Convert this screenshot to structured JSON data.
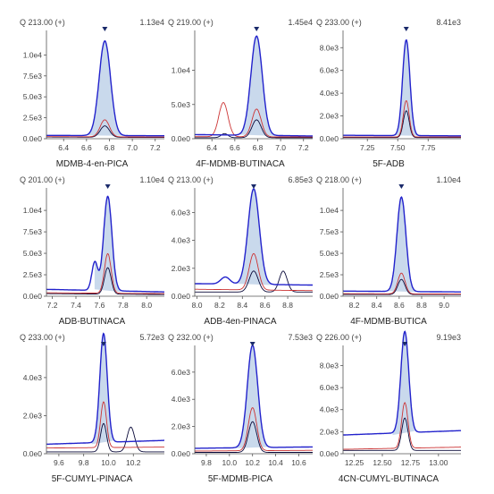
{
  "chart_data": [
    {
      "type": "line",
      "header_left": "Q 213.00 (+)",
      "header_right": "1.13e4",
      "title": "MDMB-4-en-PICA",
      "xlim": [
        6.25,
        7.28
      ],
      "ylim": [
        0,
        12500
      ],
      "xticks": [
        6.4,
        6.6,
        6.8,
        7.0,
        7.2
      ],
      "xtick_labels": [
        "6.4",
        "6.6",
        "6.8",
        "7.0",
        "7.2"
      ],
      "yticks": [
        0,
        2500,
        5000,
        7500,
        10000
      ],
      "ytick_labels": [
        "0.0e0",
        "2.5e3",
        "5.0e3",
        "7.5e3",
        "1.0e4"
      ],
      "apex_x": 6.76,
      "peak_width": 0.05,
      "peak_height": 11300,
      "ratios": [
        0.18,
        0.12
      ],
      "side_peaks": [],
      "blue_baseline": [
        400,
        350
      ],
      "red_baseline": [
        250,
        200
      ],
      "black_baseline": [
        200,
        150
      ]
    },
    {
      "type": "line",
      "header_left": "Q 219.00 (+)",
      "header_right": "1.45e4",
      "title": "4F-MDMB-BUTINACA",
      "xlim": [
        6.25,
        7.28
      ],
      "ylim": [
        0,
        15300
      ],
      "xticks": [
        6.4,
        6.6,
        6.8,
        7.0,
        7.2
      ],
      "xtick_labels": [
        "6.4",
        "6.6",
        "6.8",
        "7.0",
        "7.2"
      ],
      "yticks": [
        0,
        5000,
        10000
      ],
      "ytick_labels": [
        "0.0e0",
        "5.0e3",
        "1.0e4"
      ],
      "apex_x": 6.79,
      "peak_width": 0.05,
      "peak_height": 14500,
      "ratios": [
        0.28,
        0.18
      ],
      "side_peaks": [
        {
          "series": "red",
          "x": 6.5,
          "h": 5000,
          "w": 0.04
        },
        {
          "series": "black",
          "x": 6.51,
          "h": 600,
          "w": 0.03
        }
      ],
      "blue_baseline": [
        600,
        400
      ],
      "red_baseline": [
        300,
        250
      ],
      "black_baseline": [
        150,
        150
      ]
    },
    {
      "type": "line",
      "header_left": "Q 233.00 (+)",
      "header_right": "8.41e3",
      "title": "5F-ADB",
      "xlim": [
        7.05,
        8.02
      ],
      "ylim": [
        0,
        9200
      ],
      "xticks": [
        7.25,
        7.5,
        7.75
      ],
      "xtick_labels": [
        "7.25",
        "7.50",
        "7.75"
      ],
      "yticks": [
        0,
        2000,
        4000,
        6000,
        8000
      ],
      "ytick_labels": [
        "0.0e0",
        "2.0e3",
        "4.0e3",
        "6.0e3",
        "8.0e3"
      ],
      "apex_x": 7.57,
      "peak_width": 0.03,
      "peak_height": 8410,
      "ratios": [
        0.38,
        0.28
      ],
      "side_peaks": [],
      "blue_baseline": [
        300,
        250
      ],
      "red_baseline": [
        150,
        150
      ],
      "black_baseline": [
        100,
        100
      ]
    },
    {
      "type": "line",
      "header_left": "Q 201.00 (+)",
      "header_right": "1.10e4",
      "title": "ADB-BUTINACA",
      "xlim": [
        7.15,
        8.15
      ],
      "ylim": [
        0,
        12200
      ],
      "xticks": [
        7.2,
        7.4,
        7.6,
        7.8,
        8.0
      ],
      "xtick_labels": [
        "7.2",
        "7.4",
        "7.6",
        "7.8",
        "8.0"
      ],
      "yticks": [
        0,
        2500,
        5000,
        7500,
        10000
      ],
      "ytick_labels": [
        "0.0e0",
        "2.5e3",
        "5.0e3",
        "7.5e3",
        "1.0e4"
      ],
      "apex_x": 7.67,
      "peak_width": 0.035,
      "peak_height": 11000,
      "ratios": [
        0.42,
        0.28
      ],
      "side_peaks": [
        {
          "series": "blue",
          "x": 7.56,
          "h": 3300,
          "w": 0.025
        }
      ],
      "blue_baseline": [
        800,
        500
      ],
      "red_baseline": [
        400,
        300
      ],
      "black_baseline": [
        300,
        200
      ]
    },
    {
      "type": "line",
      "header_left": "Q 213.00 (+)",
      "header_right": "6.85e3",
      "title": "ADB-4en-PINACA",
      "xlim": [
        7.98,
        9.02
      ],
      "ylim": [
        0,
        7500
      ],
      "xticks": [
        8.0,
        8.2,
        8.4,
        8.6,
        8.8
      ],
      "xtick_labels": [
        "8.0",
        "8.2",
        "8.4",
        "8.6",
        "8.8"
      ],
      "yticks": [
        0,
        2000,
        4000,
        6000
      ],
      "ytick_labels": [
        "0.0e0",
        "2.0e3",
        "4.0e3",
        "6.0e3"
      ],
      "apex_x": 8.5,
      "peak_width": 0.05,
      "peak_height": 6850,
      "ratios": [
        0.38,
        0.22
      ],
      "side_peaks": [
        {
          "series": "black",
          "x": 8.76,
          "h": 1500,
          "w": 0.035
        },
        {
          "series": "blue",
          "x": 8.25,
          "h": 500,
          "w": 0.04
        }
      ],
      "blue_baseline": [
        900,
        800
      ],
      "red_baseline": [
        500,
        400
      ],
      "black_baseline": [
        300,
        300
      ]
    },
    {
      "type": "line",
      "header_left": "Q 218.00 (+)",
      "header_right": "1.10e4",
      "title": "4F-MDMB-BUTICA",
      "xlim": [
        8.1,
        9.15
      ],
      "ylim": [
        0,
        12200
      ],
      "xticks": [
        8.2,
        8.4,
        8.6,
        8.8,
        9.0
      ],
      "xtick_labels": [
        "8.2",
        "8.4",
        "8.6",
        "8.8",
        "9.0"
      ],
      "yticks": [
        0,
        2500,
        5000,
        7500,
        10000
      ],
      "ytick_labels": [
        "0.0e0",
        "2.5e3",
        "5.0e3",
        "7.5e3",
        "1.0e4"
      ],
      "apex_x": 8.62,
      "peak_width": 0.04,
      "peak_height": 11000,
      "ratios": [
        0.22,
        0.16
      ],
      "side_peaks": [],
      "blue_baseline": [
        600,
        500
      ],
      "red_baseline": [
        300,
        250
      ],
      "black_baseline": [
        200,
        200
      ]
    },
    {
      "type": "line",
      "header_left": "Q 233.00 (+)",
      "header_right": "5.72e3",
      "title": "5F-CUMYL-PINACA",
      "xlim": [
        9.5,
        10.45
      ],
      "ylim": [
        0,
        5500
      ],
      "xticks": [
        9.6,
        9.8,
        10.0,
        10.2
      ],
      "xtick_labels": [
        "9.6",
        "9.8",
        "10.0",
        "10.2"
      ],
      "yticks": [
        0,
        2000,
        4000
      ],
      "ytick_labels": [
        "0.0e0",
        "2.0e3",
        "4.0e3"
      ],
      "apex_x": 9.96,
      "peak_width": 0.03,
      "peak_height": 5720,
      "ratios": [
        0.42,
        0.26
      ],
      "side_peaks": [
        {
          "series": "black",
          "x": 10.18,
          "h": 1300,
          "w": 0.03
        }
      ],
      "blue_baseline": [
        500,
        700
      ],
      "red_baseline": [
        300,
        350
      ],
      "black_baseline": [
        100,
        100
      ]
    },
    {
      "type": "line",
      "header_left": "Q 232.00 (+)",
      "header_right": "7.53e3",
      "title": "5F-MDMB-PICA",
      "xlim": [
        9.7,
        10.72
      ],
      "ylim": [
        0,
        7700
      ],
      "xticks": [
        9.8,
        10.0,
        10.2,
        10.4,
        10.6
      ],
      "xtick_labels": [
        "9.8",
        "10.0",
        "10.2",
        "10.4",
        "10.6"
      ],
      "yticks": [
        0,
        2000,
        4000,
        6000
      ],
      "ytick_labels": [
        "0.0e0",
        "2.0e3",
        "4.0e3",
        "6.0e3"
      ],
      "apex_x": 10.2,
      "peak_width": 0.045,
      "peak_height": 7530,
      "ratios": [
        0.42,
        0.3
      ],
      "side_peaks": [],
      "blue_baseline": [
        400,
        500
      ],
      "red_baseline": [
        200,
        250
      ],
      "black_baseline": [
        100,
        100
      ]
    },
    {
      "type": "line",
      "header_left": "Q 226.00 (+)",
      "header_right": "9.19e3",
      "title": "4CN-CUMYL-BUTINACA",
      "xlim": [
        12.15,
        13.2
      ],
      "ylim": [
        0,
        9500
      ],
      "xticks": [
        12.25,
        12.5,
        12.75,
        13.0
      ],
      "xtick_labels": [
        "12.25",
        "12.50",
        "12.75",
        "13.00"
      ],
      "yticks": [
        0,
        2000,
        4000,
        6000,
        8000
      ],
      "ytick_labels": [
        "0.0e0",
        "2.0e3",
        "4.0e3",
        "6.0e3",
        "8.0e3"
      ],
      "apex_x": 12.7,
      "peak_width": 0.035,
      "peak_height": 9190,
      "ratios": [
        0.45,
        0.32
      ],
      "side_peaks": [],
      "blue_baseline": [
        1700,
        2100
      ],
      "red_baseline": [
        400,
        600
      ],
      "black_baseline": [
        300,
        300
      ]
    }
  ],
  "colors": {
    "blue": "#2222cc",
    "red": "#cc3333",
    "black": "#0a0a3a",
    "fill": "#c9d9ec",
    "marker": "#1a2a6a",
    "axis": "#555555"
  }
}
